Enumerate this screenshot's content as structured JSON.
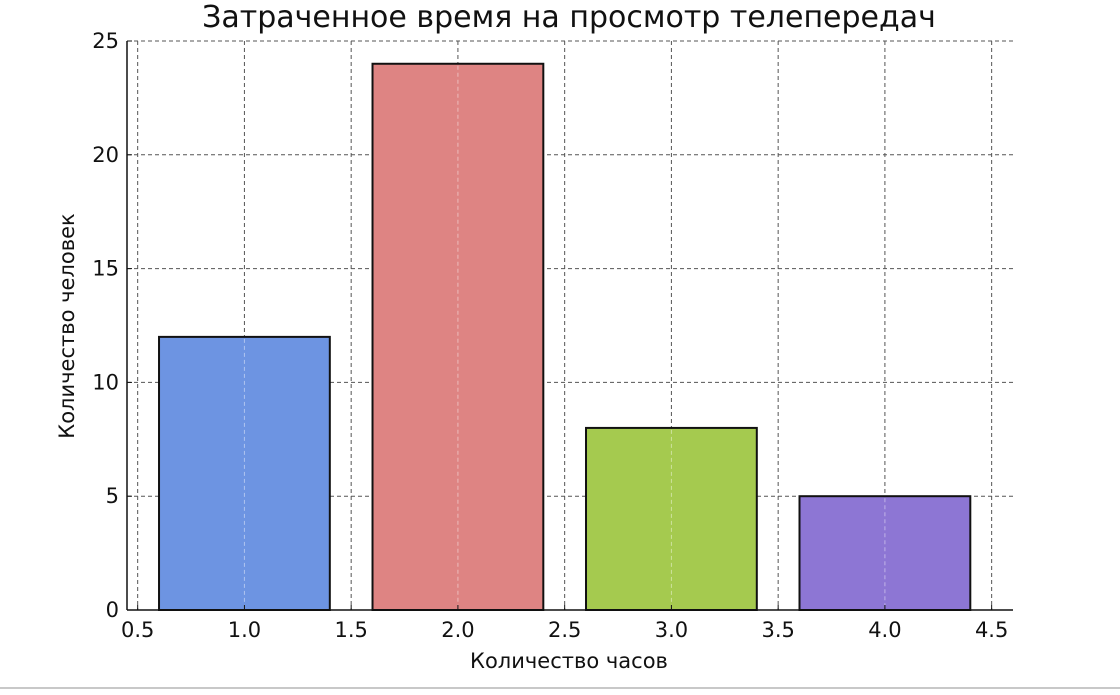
{
  "chart_data": {
    "type": "bar",
    "title": "Затраченное время на просмотр телепередач",
    "xlabel": "Количество часов",
    "ylabel": "Количество человек",
    "x": [
      1.0,
      2.0,
      3.0,
      4.0
    ],
    "values": [
      12,
      24,
      8,
      5
    ],
    "bar_width": 0.8,
    "colors": [
      "#6d94e2",
      "#de8483",
      "#a5ca4f",
      "#8d76d4"
    ],
    "xlim": [
      0.45,
      4.6
    ],
    "ylim": [
      0,
      25
    ],
    "xticks": [
      "0.5",
      "1.0",
      "1.5",
      "2.0",
      "2.5",
      "3.0",
      "3.5",
      "4.0",
      "4.5"
    ],
    "yticks": [
      "0",
      "5",
      "10",
      "15",
      "20",
      "25"
    ],
    "grid": true,
    "legend": "none"
  }
}
